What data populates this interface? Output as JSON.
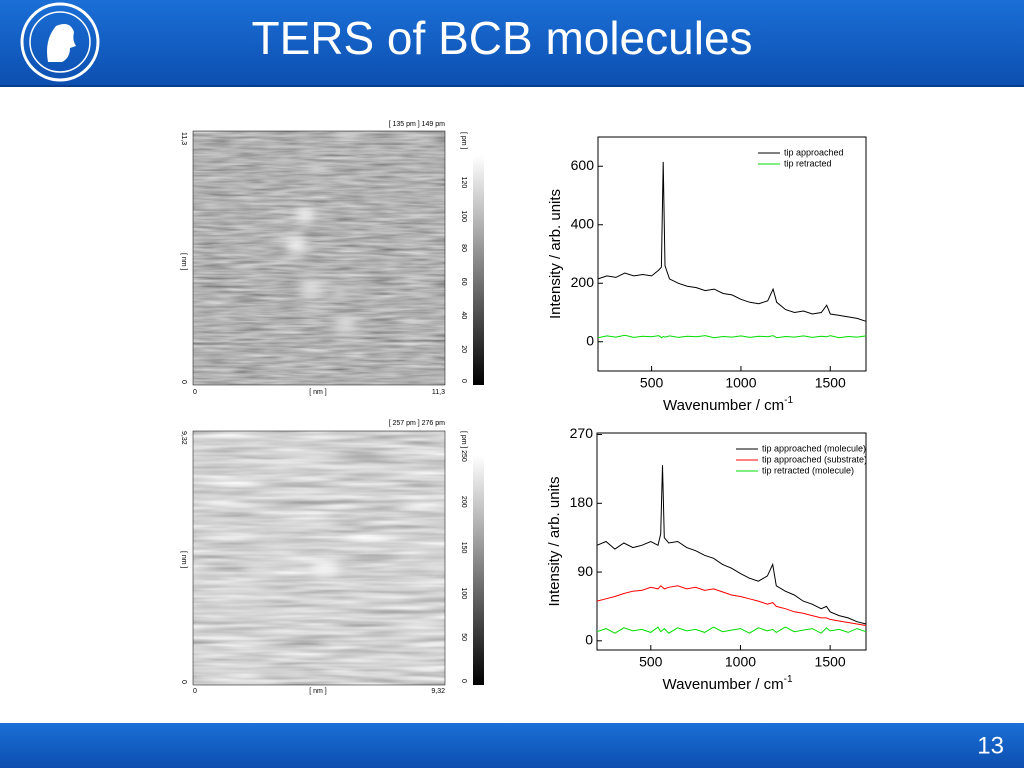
{
  "header": {
    "title": "TERS of BCB molecules"
  },
  "footer": {
    "page_number": "13"
  },
  "stm_images": [
    {
      "range_label": "[ 135 pm ] 149 pm",
      "y_max": "11,3",
      "y_unit": "[ nm ]",
      "y_min": "0",
      "x_min": "0",
      "x_unit": "[ nm ]",
      "x_max": "11,3",
      "colorbar_unit": "[ pm ]",
      "colorbar_ticks": [
        120,
        100,
        80,
        60,
        40,
        20,
        0
      ]
    },
    {
      "range_label": "[ 257 pm ] 276 pm",
      "y_max": "9,32",
      "y_unit": "[ nm ]",
      "y_min": "0",
      "x_min": "0",
      "x_unit": "[ nm ]",
      "x_max": "9,32",
      "colorbar_unit": "[ pm ]",
      "colorbar_ticks": [
        250,
        200,
        150,
        100,
        50,
        0
      ]
    }
  ],
  "chart_data": [
    {
      "type": "line",
      "x_label": "Wavenumber / cm",
      "x_label_sup": "-1",
      "y_label": "Intensity / arb. units",
      "xlim": [
        200,
        1700
      ],
      "xticks": [
        500,
        1000,
        1500
      ],
      "ylim": [
        -100,
        700
      ],
      "yticks": [
        0,
        200,
        400,
        600
      ],
      "x": [
        200,
        250,
        300,
        350,
        400,
        450,
        500,
        540,
        555,
        565,
        575,
        600,
        650,
        700,
        750,
        800,
        850,
        900,
        950,
        1000,
        1050,
        1100,
        1150,
        1180,
        1200,
        1250,
        1300,
        1350,
        1400,
        1450,
        1480,
        1500,
        1550,
        1600,
        1650,
        1700
      ],
      "series": [
        {
          "name": "tip approached",
          "color": "#000000",
          "values": [
            215,
            225,
            220,
            235,
            225,
            230,
            225,
            245,
            255,
            615,
            260,
            215,
            200,
            190,
            185,
            175,
            180,
            165,
            160,
            145,
            135,
            130,
            140,
            180,
            135,
            110,
            100,
            105,
            95,
            100,
            125,
            95,
            90,
            85,
            80,
            70
          ]
        },
        {
          "name": "tip retracted",
          "color": "#00dd00",
          "values": [
            14,
            20,
            16,
            22,
            15,
            19,
            17,
            21,
            14,
            18,
            16,
            20,
            15,
            19,
            17,
            21,
            14,
            18,
            16,
            20,
            15,
            19,
            17,
            21,
            14,
            18,
            16,
            20,
            15,
            19,
            17,
            21,
            14,
            18,
            16,
            20
          ]
        }
      ]
    },
    {
      "type": "line",
      "x_label": "Wavenumber / cm",
      "x_label_sup": "-1",
      "y_label": "Intensity / arb. units",
      "xlim": [
        200,
        1700
      ],
      "xticks": [
        500,
        1000,
        1500
      ],
      "ylim": [
        -12,
        272
      ],
      "yticks": [
        0,
        90,
        180,
        270
      ],
      "x": [
        200,
        250,
        300,
        350,
        400,
        450,
        500,
        540,
        555,
        565,
        575,
        600,
        650,
        700,
        750,
        800,
        850,
        900,
        950,
        1000,
        1050,
        1100,
        1150,
        1180,
        1200,
        1250,
        1300,
        1350,
        1400,
        1450,
        1480,
        1500,
        1550,
        1600,
        1650,
        1700
      ],
      "series": [
        {
          "name": "tip approached (molecule)",
          "color": "#000000",
          "values": [
            125,
            130,
            120,
            128,
            122,
            125,
            130,
            125,
            140,
            230,
            135,
            128,
            130,
            122,
            118,
            112,
            108,
            100,
            95,
            88,
            82,
            78,
            85,
            100,
            72,
            65,
            60,
            52,
            48,
            42,
            45,
            38,
            33,
            30,
            25,
            22
          ]
        },
        {
          "name": "tip approached (substrate)",
          "color": "#ff0000",
          "values": [
            52,
            55,
            58,
            62,
            65,
            66,
            70,
            68,
            72,
            70,
            68,
            70,
            72,
            68,
            70,
            66,
            68,
            64,
            60,
            58,
            55,
            52,
            48,
            50,
            45,
            42,
            38,
            36,
            33,
            30,
            30,
            28,
            26,
            24,
            22,
            20
          ]
        },
        {
          "name": "tip retracted (molecule)",
          "color": "#00dd00",
          "values": [
            12,
            16,
            10,
            17,
            13,
            15,
            11,
            18,
            12,
            14,
            16,
            10,
            17,
            13,
            15,
            11,
            18,
            12,
            14,
            16,
            10,
            17,
            13,
            15,
            11,
            18,
            12,
            14,
            16,
            10,
            17,
            13,
            15,
            11,
            16,
            12
          ]
        }
      ]
    }
  ]
}
